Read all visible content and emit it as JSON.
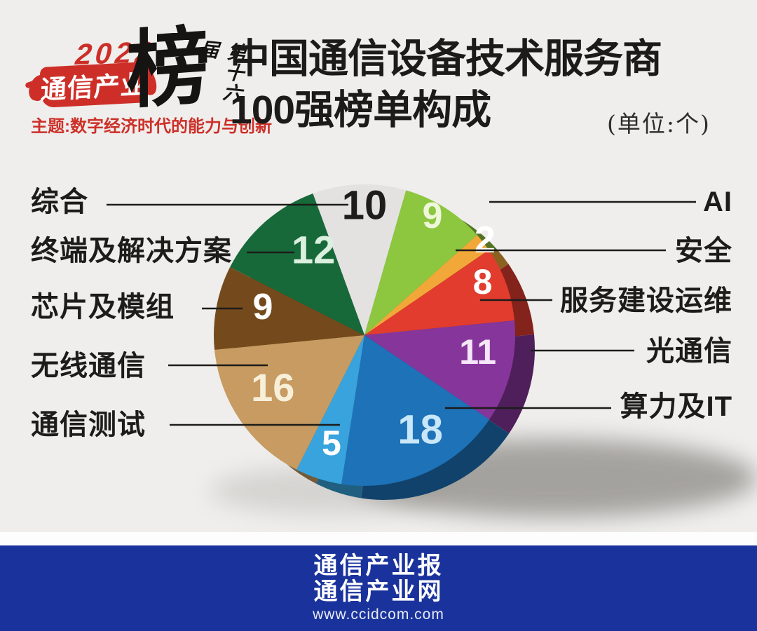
{
  "logo": {
    "year": "2022",
    "brand": "通信产业",
    "bang": "榜",
    "edition": "第十六届",
    "theme": "主题:数字经济时代的能力与创新"
  },
  "header": {
    "title_line1": "中国通信设备技术服务商",
    "title_line2": "100强榜单构成",
    "unit": "(单位:个)"
  },
  "chart_data": {
    "type": "pie",
    "title": "中国通信设备技术服务商100强榜单构成",
    "unit": "个",
    "total": 100,
    "start_angle_deg": -20,
    "style": "3d",
    "slices": [
      {
        "label": "综合",
        "value": 10,
        "color": "#e3e2e0",
        "number_color": "#1d1d1b"
      },
      {
        "label": "AI",
        "value": 9,
        "color": "#8dc63f",
        "number_color": "#eff7db"
      },
      {
        "label": "安全",
        "value": 2,
        "color": "#f2a838",
        "number_color": "#ffffff"
      },
      {
        "label": "服务建设运维",
        "value": 8,
        "color": "#e23c2e",
        "number_color": "#ffffff"
      },
      {
        "label": "光通信",
        "value": 11,
        "color": "#86359b",
        "number_color": "#f5e6f8"
      },
      {
        "label": "算力及IT",
        "value": 18,
        "color": "#1d72b8",
        "number_color": "#c9e7f8"
      },
      {
        "label": "通信测试",
        "value": 5,
        "color": "#38a3dc",
        "number_color": "#ffffff"
      },
      {
        "label": "无线通信",
        "value": 16,
        "color": "#c79b61",
        "number_color": "#f8efda"
      },
      {
        "label": "芯片及模组",
        "value": 9,
        "color": "#744a1c",
        "number_color": "#ffffff"
      },
      {
        "label": "终端及解决方案",
        "value": 12,
        "color": "#17693a",
        "number_color": "#dbf0de"
      }
    ]
  },
  "footer": {
    "line1": "通信产业报",
    "line2": "通信产业网",
    "url": "www.ccidcom.com"
  }
}
